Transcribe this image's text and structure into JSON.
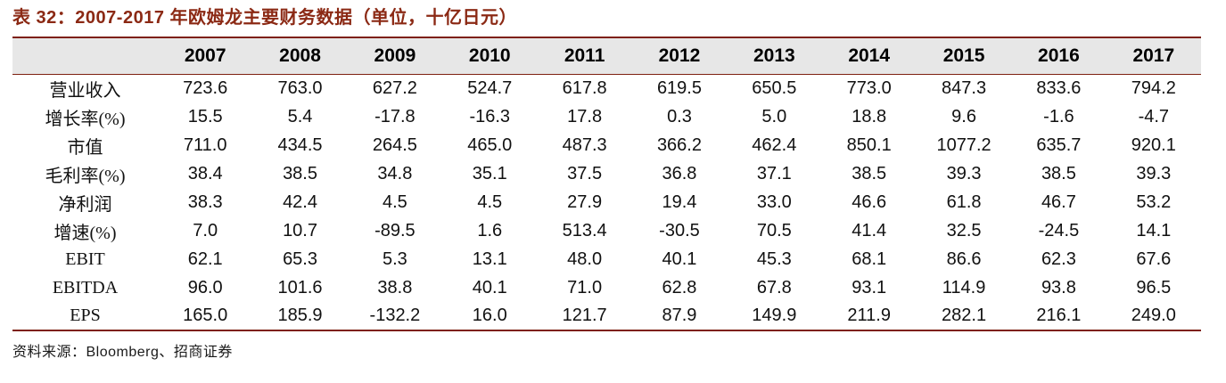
{
  "title": "表 32：2007-2017 年欧姆龙主要财务数据（单位，十亿日元）",
  "source": "资料来源：Bloomberg、招商证券",
  "colors": {
    "accent": "#8B2914",
    "line": "#7E2010",
    "header_bg": "#E7E7E7",
    "text": "#111111"
  },
  "chart_data": {
    "type": "table",
    "title": "表 32：2007-2017 年欧姆龙主要财务数据（单位，十亿日元）",
    "unit": "十亿日元",
    "columns": [
      "2007",
      "2008",
      "2009",
      "2010",
      "2011",
      "2012",
      "2013",
      "2014",
      "2015",
      "2016",
      "2017"
    ],
    "rows": [
      {
        "label": "营业收入",
        "values": [
          "723.6",
          "763.0",
          "627.2",
          "524.7",
          "617.8",
          "619.5",
          "650.5",
          "773.0",
          "847.3",
          "833.6",
          "794.2"
        ]
      },
      {
        "label": "增长率(%)",
        "values": [
          "15.5",
          "5.4",
          "-17.8",
          "-16.3",
          "17.8",
          "0.3",
          "5.0",
          "18.8",
          "9.6",
          "-1.6",
          "-4.7"
        ]
      },
      {
        "label": "市值",
        "values": [
          "711.0",
          "434.5",
          "264.5",
          "465.0",
          "487.3",
          "366.2",
          "462.4",
          "850.1",
          "1077.2",
          "635.7",
          "920.1"
        ]
      },
      {
        "label": "毛利率(%)",
        "values": [
          "38.4",
          "38.5",
          "34.8",
          "35.1",
          "37.5",
          "36.8",
          "37.1",
          "38.5",
          "39.3",
          "38.5",
          "39.3"
        ]
      },
      {
        "label": "净利润",
        "values": [
          "38.3",
          "42.4",
          "4.5",
          "4.5",
          "27.9",
          "19.4",
          "33.0",
          "46.6",
          "61.8",
          "46.7",
          "53.2"
        ]
      },
      {
        "label": "增速(%)",
        "values": [
          "7.0",
          "10.7",
          "-89.5",
          "1.6",
          "513.4",
          "-30.5",
          "70.5",
          "41.4",
          "32.5",
          "-24.5",
          "14.1"
        ]
      },
      {
        "label": "EBIT",
        "values": [
          "62.1",
          "65.3",
          "5.3",
          "13.1",
          "48.0",
          "40.1",
          "45.3",
          "68.1",
          "86.6",
          "62.3",
          "67.6"
        ]
      },
      {
        "label": "EBITDA",
        "values": [
          "96.0",
          "101.6",
          "38.8",
          "40.1",
          "71.0",
          "62.8",
          "67.8",
          "93.1",
          "114.9",
          "93.8",
          "96.5"
        ]
      },
      {
        "label": "EPS",
        "values": [
          "165.0",
          "185.9",
          "-132.2",
          "16.0",
          "121.7",
          "87.9",
          "149.9",
          "211.9",
          "282.1",
          "216.1",
          "249.0"
        ]
      }
    ]
  }
}
